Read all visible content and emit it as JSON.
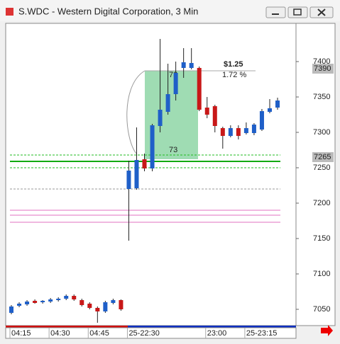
{
  "chart_data": {
    "type": "candlestick",
    "title": "S.WDC - Western Digital Corporation, 3 Min",
    "categories": [
      "04:15",
      null,
      null,
      null,
      null,
      "04:30",
      null,
      null,
      null,
      null,
      "04:45",
      null,
      null,
      null,
      null,
      "25-22:30",
      null,
      null,
      null,
      null,
      null,
      null,
      null,
      null,
      null,
      "23:00",
      null,
      null,
      null,
      null,
      "25-23:15",
      null,
      null,
      null,
      null
    ],
    "open": [
      7045,
      7055,
      7057,
      7062,
      7060,
      7061,
      7063,
      7065,
      7069,
      7063,
      7058,
      7052,
      7047,
      7059,
      7063,
      7220,
      7221,
      7262,
      7249,
      7309,
      7329,
      7354,
      7391,
      7391,
      7391,
      7335,
      7337,
      7306,
      7295,
      7306,
      7299,
      7299,
      7304,
      7329,
      7335
    ],
    "high": [
      7056,
      7060,
      7063,
      7064,
      7063,
      7066,
      7067,
      7071,
      7071,
      7065,
      7060,
      7054,
      7062,
      7065,
      7064,
      7260,
      7307,
      7270,
      7312,
      7432,
      7397,
      7400,
      7419,
      7419,
      7393,
      7350,
      7339,
      7308,
      7310,
      7310,
      7314,
      7313,
      7333,
      7347,
      7349
    ],
    "low": [
      7043,
      7053,
      7055,
      7058,
      7058,
      7059,
      7061,
      7063,
      7062,
      7054,
      7050,
      7031,
      7045,
      7057,
      7048,
      7147,
      7219,
      7245,
      7245,
      7300,
      7325,
      7345,
      7377,
      7389,
      7330,
      7320,
      7300,
      7277,
      7293,
      7290,
      7297,
      7296,
      7302,
      7327,
      7332
    ],
    "close": [
      7054,
      7058,
      7061,
      7059,
      7062,
      7064,
      7065,
      7069,
      7064,
      7056,
      7052,
      7047,
      7060,
      7063,
      7050,
      7246,
      7261,
      7249,
      7310,
      7332,
      7354,
      7384,
      7399,
      7398,
      7332,
      7325,
      7309,
      7295,
      7306,
      7295,
      7306,
      7311,
      7330,
      7334,
      7345
    ],
    "up_color": "#1f5fc8",
    "down_color": "#c81818",
    "ylim": [
      7027,
      7454
    ],
    "yticks": [
      7050,
      7100,
      7150,
      7200,
      7250,
      7300,
      7350,
      7400
    ],
    "price_markers": [
      7390,
      7265
    ],
    "levels": [
      {
        "value": 7268,
        "color": "#22bb22",
        "style": "dashed"
      },
      {
        "value": 7259,
        "color": "#11aa11",
        "style": "solid"
      },
      {
        "value": 7250,
        "color": "#22bb22",
        "style": "dashed"
      },
      {
        "value": 7220,
        "color": "#999999",
        "style": "dashed"
      },
      {
        "value": 7190,
        "color": "#e070c0",
        "style": "solid"
      },
      {
        "value": 7183,
        "color": "#e070c0",
        "style": "solid"
      },
      {
        "value": 7173,
        "color": "#e070c0",
        "style": "solid"
      }
    ],
    "measure": {
      "from": 7262,
      "to": 7387,
      "change": "$1.25",
      "percent": "1.72 %",
      "bars": "73",
      "color": "#7fd09a"
    }
  }
}
